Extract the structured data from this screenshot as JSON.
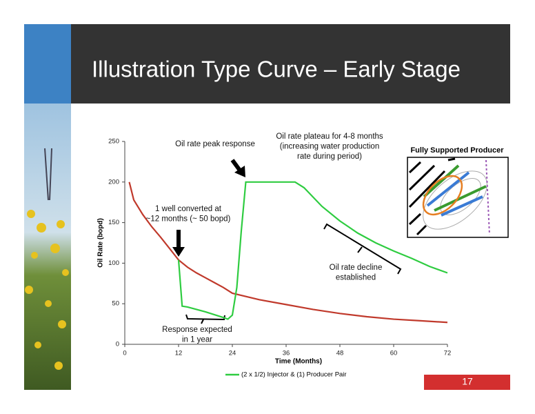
{
  "header": {
    "title": "Illustration Type Curve – Early Stage"
  },
  "chart_data": {
    "type": "line",
    "xlabel": "Time (Months)",
    "ylabel": "Oil Rate (bopd)",
    "xlim": [
      0,
      72
    ],
    "xticks": [
      0,
      12,
      24,
      36,
      48,
      60,
      72
    ],
    "ylim": [
      0,
      250
    ],
    "yticks": [
      0,
      50,
      100,
      150,
      200,
      250
    ],
    "grid": false,
    "legend": "bottom",
    "series": [
      {
        "color": "#c0392b",
        "x": [
          1,
          2,
          4,
          6,
          8,
          10,
          12,
          14,
          16,
          18,
          20,
          22,
          24,
          30,
          36,
          42,
          48,
          54,
          60,
          66,
          72
        ],
        "values": [
          200,
          178,
          160,
          145,
          132,
          118,
          104,
          95,
          88,
          82,
          76,
          70,
          63,
          55,
          49,
          43,
          38,
          34,
          31,
          29,
          27
        ]
      },
      {
        "name": "(2 x 1/2) Injector & (1) Producer Pair",
        "color": "#2ecc40",
        "x": [
          12,
          12.8,
          14,
          18,
          22,
          23,
          24,
          25,
          26,
          27,
          28,
          38,
          40,
          44,
          48,
          52,
          56,
          60,
          64,
          68,
          72
        ],
        "values": [
          104,
          47,
          46,
          40,
          33,
          31,
          36,
          70,
          140,
          200,
          200,
          200,
          193,
          170,
          152,
          137,
          125,
          115,
          106,
          96,
          88
        ]
      }
    ],
    "annotations": [
      {
        "lines": [
          "Oil rate peak response"
        ]
      },
      {
        "lines": [
          "Oil rate plateau for 4-8 months",
          "(increasing water production",
          "rate during period)"
        ]
      },
      {
        "lines": [
          "1 well converted at",
          "~12 months (~ 50 bopd)"
        ]
      },
      {
        "lines": [
          "Oil rate decline",
          "established"
        ]
      },
      {
        "lines": [
          "Response expected",
          "in 1 year"
        ]
      }
    ]
  },
  "inset": {
    "title": "Fully Supported Producer"
  },
  "footer": {
    "page_number": "17"
  }
}
